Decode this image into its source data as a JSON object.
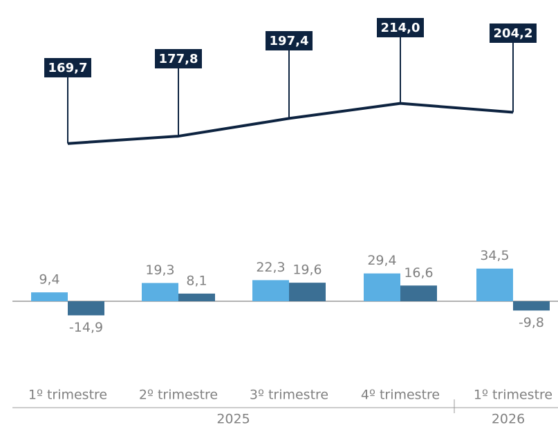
{
  "chart_data": [
    {
      "type": "line",
      "values": [
        169.7,
        177.8,
        197.4,
        214.0,
        204.2
      ],
      "value_labels": [
        "169,7",
        "177,8",
        "197,4",
        "214,0",
        "204,2"
      ],
      "color": "#0d2340"
    },
    {
      "type": "bar",
      "groups": [
        {
          "name": "2025",
          "categories": [
            "1º trimestre",
            "2º trimestre",
            "3º trimestre",
            "4º trimestre"
          ]
        },
        {
          "name": "2026",
          "categories": [
            "1º trimestre"
          ]
        }
      ],
      "series": [
        {
          "color": "#5aafe3",
          "values": [
            9.4,
            19.3,
            22.3,
            29.4,
            34.5
          ],
          "value_labels": [
            "9,4",
            "19,3",
            "22,3",
            "29,4",
            "34,5"
          ]
        },
        {
          "color": "#3b6f94",
          "values": [
            -14.9,
            8.1,
            19.6,
            16.6,
            -9.8
          ],
          "value_labels": [
            "-14,9",
            "8,1",
            "19,6",
            "16,6",
            "-9,8"
          ]
        }
      ]
    }
  ]
}
